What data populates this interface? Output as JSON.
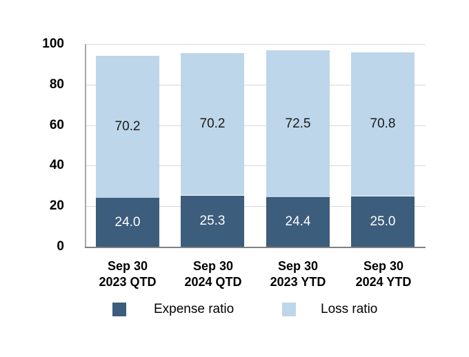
{
  "chart_data": {
    "type": "bar",
    "stacked": true,
    "title": "",
    "xlabel": "",
    "ylabel": "",
    "grid": true,
    "legend_position": "bottom",
    "categories": [
      [
        "Sep 30",
        "2023 QTD"
      ],
      [
        "Sep 30",
        "2024 QTD"
      ],
      [
        "Sep 30",
        "2023 YTD"
      ],
      [
        "Sep 30",
        "2024 YTD"
      ]
    ],
    "series": [
      {
        "name": "Expense ratio",
        "color": "#3c5d7c",
        "label_color": "#ffffff",
        "values": [
          24.0,
          25.3,
          24.4,
          25.0
        ],
        "labels": [
          "24.0",
          "25.3",
          "24.4",
          "25.0"
        ]
      },
      {
        "name": "Loss ratio",
        "color": "#bdd6e9",
        "label_color": "#1a1a1a",
        "values": [
          70.2,
          70.2,
          72.5,
          70.8
        ],
        "labels": [
          "70.2",
          "70.2",
          "72.5",
          "70.8"
        ]
      }
    ],
    "totals": [
      94.2,
      95.5,
      96.9,
      95.8
    ],
    "y_axis": {
      "min": 0,
      "max": 100,
      "ticks": [
        0,
        20,
        40,
        60,
        80,
        100
      ]
    },
    "colors": {
      "gridline": "#d9d9d9",
      "axis_left": "#a6a6a6",
      "axis_bottom": "#808080",
      "background": "#ffffff"
    }
  }
}
